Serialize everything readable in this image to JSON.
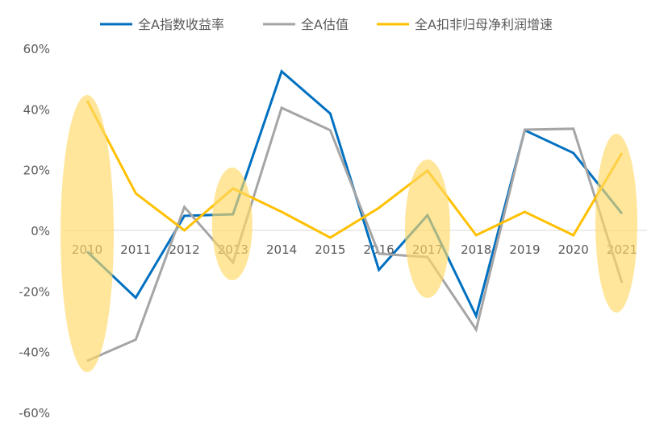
{
  "chart_data": {
    "type": "line",
    "title": "",
    "xlabel": "",
    "ylabel": "",
    "categories": [
      "2010",
      "2011",
      "2012",
      "2013",
      "2014",
      "2015",
      "2016",
      "2017",
      "2018",
      "2019",
      "2020",
      "2021"
    ],
    "ylim": [
      -60,
      60
    ],
    "yticks": [
      -60,
      -40,
      -20,
      0,
      20,
      40,
      60
    ],
    "ytick_labels": [
      "-60%",
      "-40%",
      "-20%",
      "0%",
      "20%",
      "40%",
      "60%"
    ],
    "grid": false,
    "legend_position": "top",
    "series": [
      {
        "name": "全A指数收益率",
        "color": "#0070C0",
        "values": [
          -7.0,
          -22.2,
          4.8,
          5.3,
          52.4,
          38.5,
          -13.0,
          5.0,
          -28.2,
          33.0,
          25.5,
          5.5
        ]
      },
      {
        "name": "全A估值",
        "color": "#A5A5A5",
        "values": [
          -43.0,
          -36.0,
          7.7,
          -10.6,
          40.4,
          33.0,
          -7.7,
          -8.8,
          -32.7,
          33.2,
          33.5,
          -17.3
        ]
      },
      {
        "name": "全A扣非归母净利润增速",
        "color": "#FFC000",
        "values": [
          42.8,
          12.2,
          0.0,
          13.8,
          6.1,
          -2.4,
          7.4,
          19.7,
          -1.6,
          6.1,
          -1.6,
          25.5
        ]
      }
    ],
    "highlighted_categories": [
      "2010",
      "2013",
      "2017",
      "2021"
    ],
    "highlight_color": "#FFD966"
  }
}
